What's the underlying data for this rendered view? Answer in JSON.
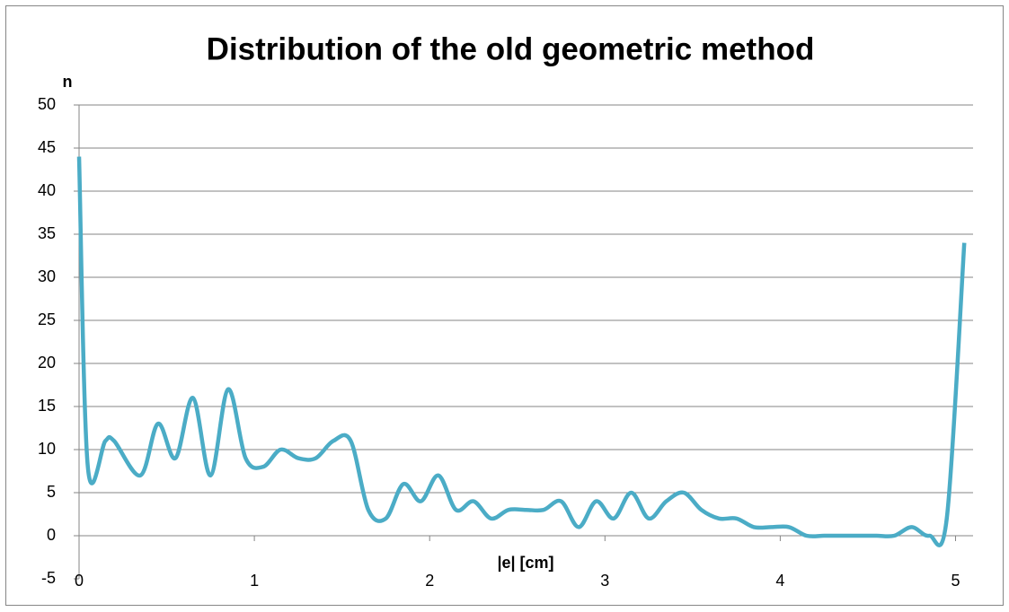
{
  "chart_data": {
    "type": "line",
    "title": "Distribution of the old geometric method",
    "y_label": "n",
    "x_label": "|e| [cm]",
    "x": [
      0,
      0.05,
      0.15,
      0.2,
      0.35,
      0.45,
      0.55,
      0.65,
      0.75,
      0.85,
      0.95,
      1.05,
      1.15,
      1.25,
      1.35,
      1.45,
      1.55,
      1.65,
      1.75,
      1.85,
      1.95,
      2.05,
      2.15,
      2.25,
      2.35,
      2.45,
      2.55,
      2.65,
      2.75,
      2.85,
      2.95,
      3.05,
      3.15,
      3.25,
      3.35,
      3.45,
      3.55,
      3.65,
      3.75,
      3.85,
      3.95,
      4.05,
      4.15,
      4.25,
      4.35,
      4.45,
      4.55,
      4.65,
      4.75,
      4.85,
      4.95,
      5.05
    ],
    "series": [
      {
        "name": "n",
        "color": "#4bacc6",
        "values": [
          44,
          8,
          11,
          11,
          7,
          13,
          9,
          16,
          7,
          17,
          9,
          8,
          10,
          9,
          9,
          11,
          11,
          3,
          2,
          6,
          4,
          7,
          3,
          4,
          2,
          3,
          3,
          3,
          4,
          1,
          4,
          2,
          5,
          2,
          4,
          5,
          3,
          2,
          2,
          1,
          1,
          1,
          0,
          0,
          0,
          0,
          0,
          0,
          1,
          0,
          2,
          34
        ]
      }
    ],
    "xlim": [
      0,
      5.1
    ],
    "xticks": [
      0,
      1,
      2,
      3,
      4,
      5
    ],
    "ylim": [
      -5,
      50
    ],
    "yticks": [
      -5,
      0,
      5,
      10,
      15,
      20,
      25,
      30,
      35,
      40,
      45,
      50
    ],
    "grid": true
  }
}
